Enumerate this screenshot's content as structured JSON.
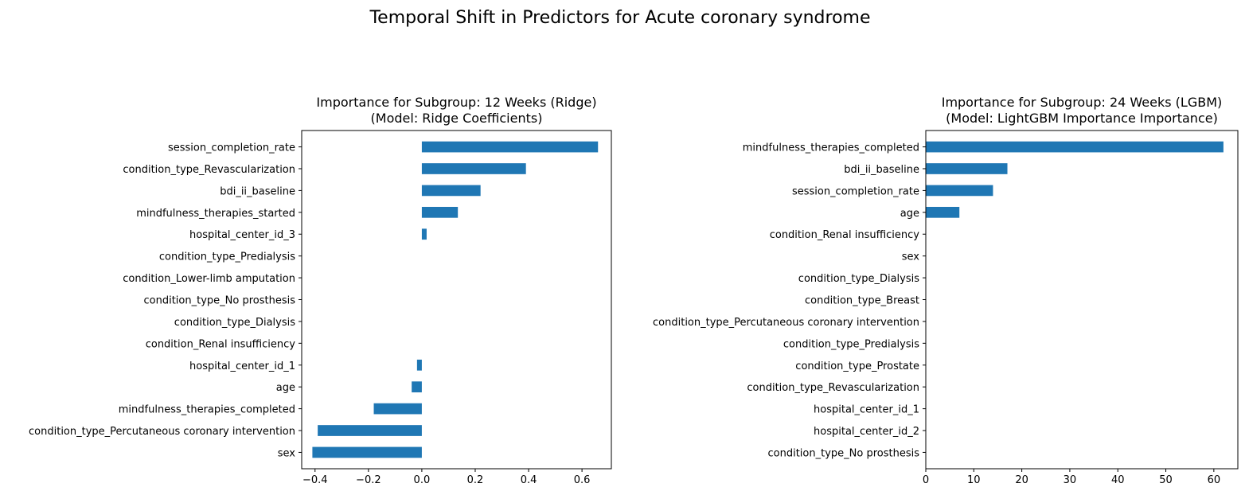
{
  "figure_title": "Temporal Shift in Predictors for Acute coronary syndrome",
  "colors": {
    "bar": "#1f77b4",
    "axis": "#000000",
    "background": "#ffffff"
  },
  "chart_data": [
    {
      "type": "bar",
      "orientation": "horizontal",
      "title_line1": "Importance for Subgroup: 12 Weeks (Ridge)",
      "title_line2": "(Model: Ridge Coefficients)",
      "xlabel": "",
      "ylabel": "",
      "xlim": [
        -0.45,
        0.71
      ],
      "xticks": [
        -0.4,
        -0.2,
        0.0,
        0.2,
        0.4,
        0.6
      ],
      "xtick_labels": [
        "−0.4",
        "−0.2",
        "0.0",
        "0.2",
        "0.4",
        "0.6"
      ],
      "grid": false,
      "categories": [
        "session_completion_rate",
        "condition_type_Revascularization",
        "bdi_ii_baseline",
        "mindfulness_therapies_started",
        "hospital_center_id_3",
        "condition_type_Predialysis",
        "condition_Lower-limb amputation",
        "condition_type_No prosthesis",
        "condition_type_Dialysis",
        "condition_Renal insufficiency",
        "hospital_center_id_1",
        "age",
        "mindfulness_therapies_completed",
        "condition_type_Percutaneous coronary intervention",
        "sex"
      ],
      "values": [
        0.66,
        0.39,
        0.22,
        0.135,
        0.018,
        0,
        0,
        0,
        0,
        0,
        -0.018,
        -0.038,
        -0.18,
        -0.39,
        -0.41
      ]
    },
    {
      "type": "bar",
      "orientation": "horizontal",
      "title_line1": "Importance for Subgroup: 24 Weeks (LGBM)",
      "title_line2": "(Model: LightGBM Importance Importance)",
      "xlabel": "",
      "ylabel": "",
      "xlim": [
        0,
        65
      ],
      "xticks": [
        0,
        10,
        20,
        30,
        40,
        50,
        60
      ],
      "xtick_labels": [
        "0",
        "10",
        "20",
        "30",
        "40",
        "50",
        "60"
      ],
      "grid": false,
      "categories": [
        "mindfulness_therapies_completed",
        "bdi_ii_baseline",
        "session_completion_rate",
        "age",
        "condition_Renal insufficiency",
        "sex",
        "condition_type_Dialysis",
        "condition_type_Breast",
        "condition_type_Percutaneous coronary intervention",
        "condition_type_Predialysis",
        "condition_type_Prostate",
        "condition_type_Revascularization",
        "hospital_center_id_1",
        "hospital_center_id_2",
        "condition_type_No prosthesis"
      ],
      "values": [
        62,
        17,
        14,
        7,
        0,
        0,
        0,
        0,
        0,
        0,
        0,
        0,
        0,
        0,
        0
      ]
    }
  ]
}
